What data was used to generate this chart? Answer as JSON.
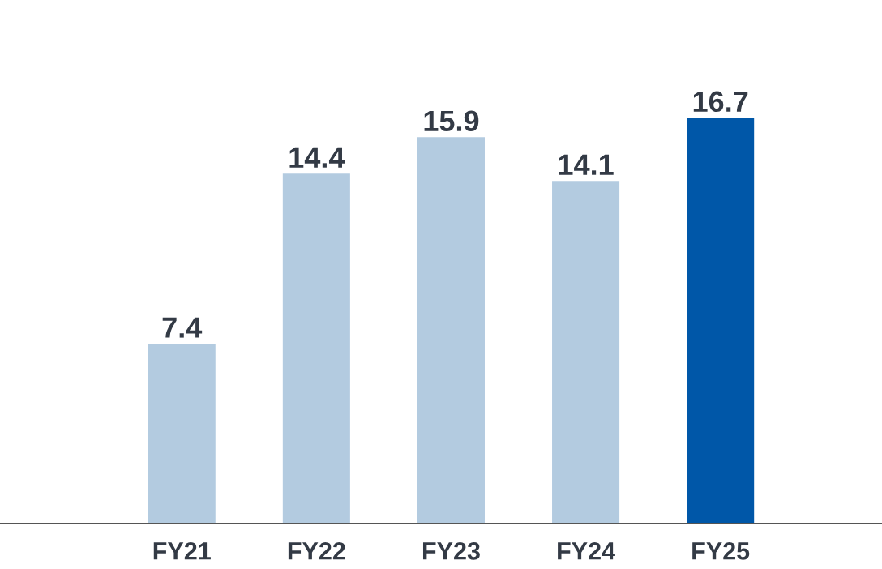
{
  "chart_data": {
    "type": "bar",
    "categories": [
      "FY21",
      "FY22",
      "FY23",
      "FY24",
      "FY25"
    ],
    "values": [
      7.4,
      14.4,
      15.9,
      14.1,
      16.7
    ],
    "colors": [
      "#b3cbe0",
      "#b3cbe0",
      "#b3cbe0",
      "#b3cbe0",
      "#0057a8"
    ],
    "data_labels": true,
    "grid": false,
    "legend": false
  }
}
